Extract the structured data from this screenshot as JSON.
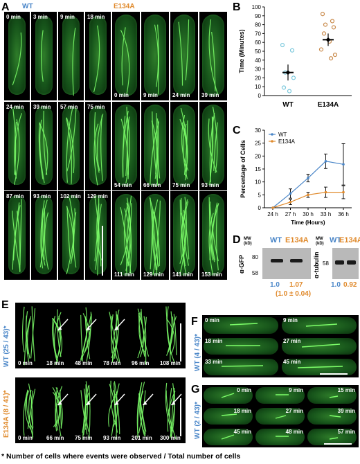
{
  "panels": {
    "A": "A",
    "B": "B",
    "C": "C",
    "D": "D",
    "E": "E",
    "F": "F",
    "G": "G"
  },
  "panelA": {
    "wt_label": "WT",
    "mut_label": "E134A",
    "wt_times": [
      "0 min",
      "3 min",
      "9 min",
      "18 min",
      "24 min",
      "39 min",
      "57 min",
      "75 min",
      "87 min",
      "93 min",
      "102 min",
      "120 min"
    ],
    "mut_times": [
      "0 min",
      "9 min",
      "24 min",
      "39 min",
      "54 min",
      "66 min",
      "75 min",
      "93 min",
      "111 min",
      "129 min",
      "141 min",
      "153 min"
    ]
  },
  "chart_data": [
    {
      "type": "scatter",
      "panel": "B",
      "ylabel": "Time (Minutes)",
      "ylim": [
        0,
        100
      ],
      "yticks": [
        0,
        10,
        20,
        30,
        40,
        50,
        60,
        70,
        80,
        90,
        100
      ],
      "categories": [
        "WT",
        "E134A"
      ],
      "series": [
        {
          "name": "WT",
          "color": "#7ac8dc",
          "values": [
            57,
            51,
            26,
            20,
            9,
            5
          ],
          "mean": 26,
          "sem_low": 17,
          "sem_high": 35
        },
        {
          "name": "E134A",
          "color": "#c98a4b",
          "values": [
            92,
            84,
            80,
            77,
            70,
            61,
            52,
            46,
            42
          ],
          "mean": 63,
          "sem_low": 56,
          "sem_high": 70
        }
      ]
    },
    {
      "type": "line",
      "panel": "C",
      "xlabel": "Time (Hours)",
      "ylabel": "Percentage of Cells",
      "ylim": [
        0,
        30
      ],
      "yticks": [
        0,
        5,
        10,
        15,
        20,
        25,
        30
      ],
      "categories": [
        "24 h",
        "27 h",
        "30 h",
        "33 h",
        "36 h"
      ],
      "legend": "top-left",
      "series": [
        {
          "name": "WT",
          "color": "#4a86c8",
          "values": [
            0,
            5.5,
            11.5,
            18,
            16.8
          ],
          "err": [
            0,
            1.8,
            1.5,
            2.8,
            8
          ]
        },
        {
          "name": "E134A",
          "color": "#e08a2c",
          "values": [
            0,
            2.2,
            5,
            6,
            6
          ],
          "err": [
            0,
            1,
            1,
            2,
            2.5
          ]
        }
      ]
    }
  ],
  "panelD": {
    "mw_label": "MW\n(kD)",
    "wt_label": "WT",
    "mut_label": "E134A",
    "gfp_axis": "α-GFP",
    "tubulin_axis": "α-tubulin",
    "mw_80": "80",
    "mw_58": "58",
    "mw_58_right": "58",
    "gfp_wt_value": "1.0",
    "gfp_mut_value": "1.07",
    "gfp_mut_sub": "(1.0 ± 0.04)",
    "tub_wt_value": "1.0",
    "tub_mut_value": "0.92"
  },
  "panelE": {
    "wt_side": "WT (25 / 43)*",
    "mut_side": "E134A (8 / 41)*",
    "wt_times": [
      "0 min",
      "18 min",
      "48 min",
      "78 min",
      "96 min",
      "108 min"
    ],
    "mut_times": [
      "0 min",
      "66 min",
      "75 min",
      "93 min",
      "201 min",
      "300 min"
    ]
  },
  "panelF": {
    "side": "WT (4 / 43)*",
    "times": [
      "0 min",
      "9 min",
      "18 min",
      "27 min",
      "33 min",
      "45 min"
    ]
  },
  "panelG": {
    "side": "WT (2 / 43)*",
    "times": [
      "0 min",
      "9 min",
      "15 min",
      "18 min",
      "27 min",
      "39 min",
      "45 min",
      "48 min",
      "57 min"
    ]
  },
  "footnote": "* Number of cells where events were observed / Total number of cells",
  "colors": {
    "wt": "#4a86c8",
    "mut": "#e08a2c",
    "cell_green": "#2f7d2a"
  }
}
